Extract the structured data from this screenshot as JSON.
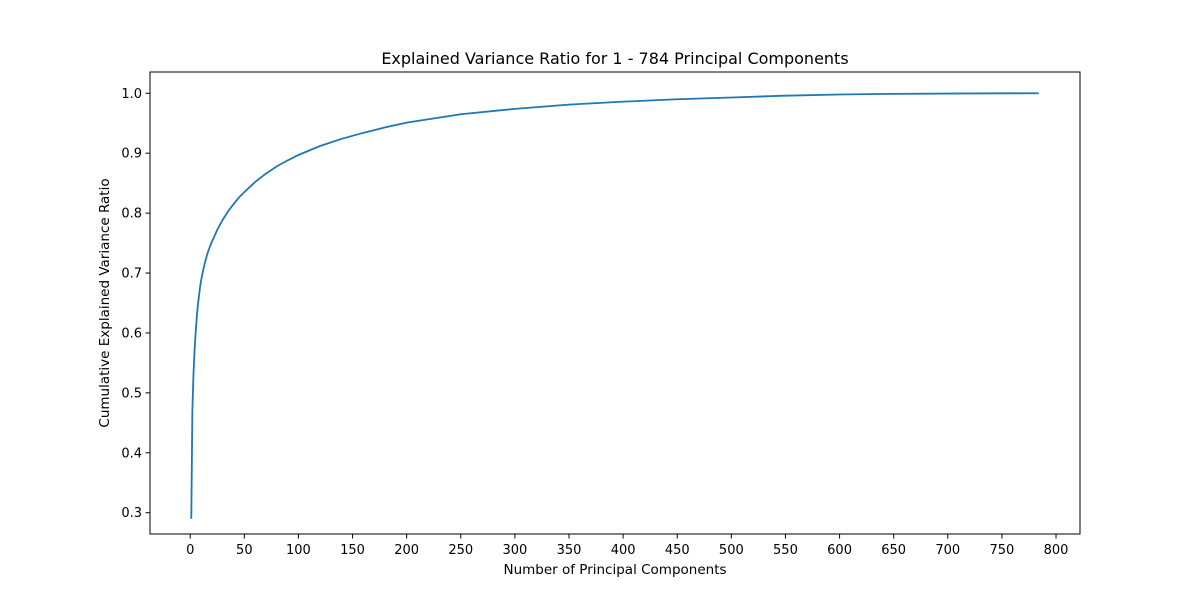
{
  "chart_data": {
    "type": "line",
    "title": "Explained Variance Ratio for 1 - 784 Principal Components",
    "xlabel": "Number of Principal Components",
    "ylabel": "Cumulative Explained Variance Ratio",
    "xlim": [
      -37.15,
      822.15
    ],
    "ylim": [
      0.2645,
      1.0355
    ],
    "xticks": [
      0,
      50,
      100,
      150,
      200,
      250,
      300,
      350,
      400,
      450,
      500,
      550,
      600,
      650,
      700,
      750,
      800
    ],
    "xtick_labels": [
      "0",
      "50",
      "100",
      "150",
      "200",
      "250",
      "300",
      "350",
      "400",
      "450",
      "500",
      "550",
      "600",
      "650",
      "700",
      "750",
      "800"
    ],
    "yticks": [
      0.3,
      0.4,
      0.5,
      0.6,
      0.7,
      0.8,
      0.9,
      1.0
    ],
    "ytick_labels": [
      "0.3",
      "0.4",
      "0.5",
      "0.6",
      "0.7",
      "0.8",
      "0.9",
      "1.0"
    ],
    "grid": false,
    "legend": "none",
    "series": [
      {
        "color": "#1f77b4",
        "x": [
          1,
          2,
          3,
          4,
          5,
          6,
          7,
          8,
          9,
          10,
          12,
          14,
          16,
          18,
          20,
          25,
          30,
          35,
          40,
          45,
          50,
          60,
          70,
          80,
          90,
          100,
          120,
          140,
          160,
          180,
          200,
          250,
          300,
          350,
          400,
          450,
          500,
          550,
          600,
          650,
          700,
          750,
          784
        ],
        "y": [
          0.29,
          0.47,
          0.53,
          0.57,
          0.6,
          0.625,
          0.645,
          0.66,
          0.675,
          0.687,
          0.705,
          0.72,
          0.733,
          0.743,
          0.752,
          0.772,
          0.789,
          0.803,
          0.815,
          0.826,
          0.835,
          0.852,
          0.866,
          0.878,
          0.888,
          0.897,
          0.912,
          0.924,
          0.934,
          0.943,
          0.951,
          0.965,
          0.974,
          0.981,
          0.986,
          0.99,
          0.993,
          0.996,
          0.998,
          0.999,
          0.9995,
          0.9999,
          1.0
        ]
      }
    ]
  }
}
